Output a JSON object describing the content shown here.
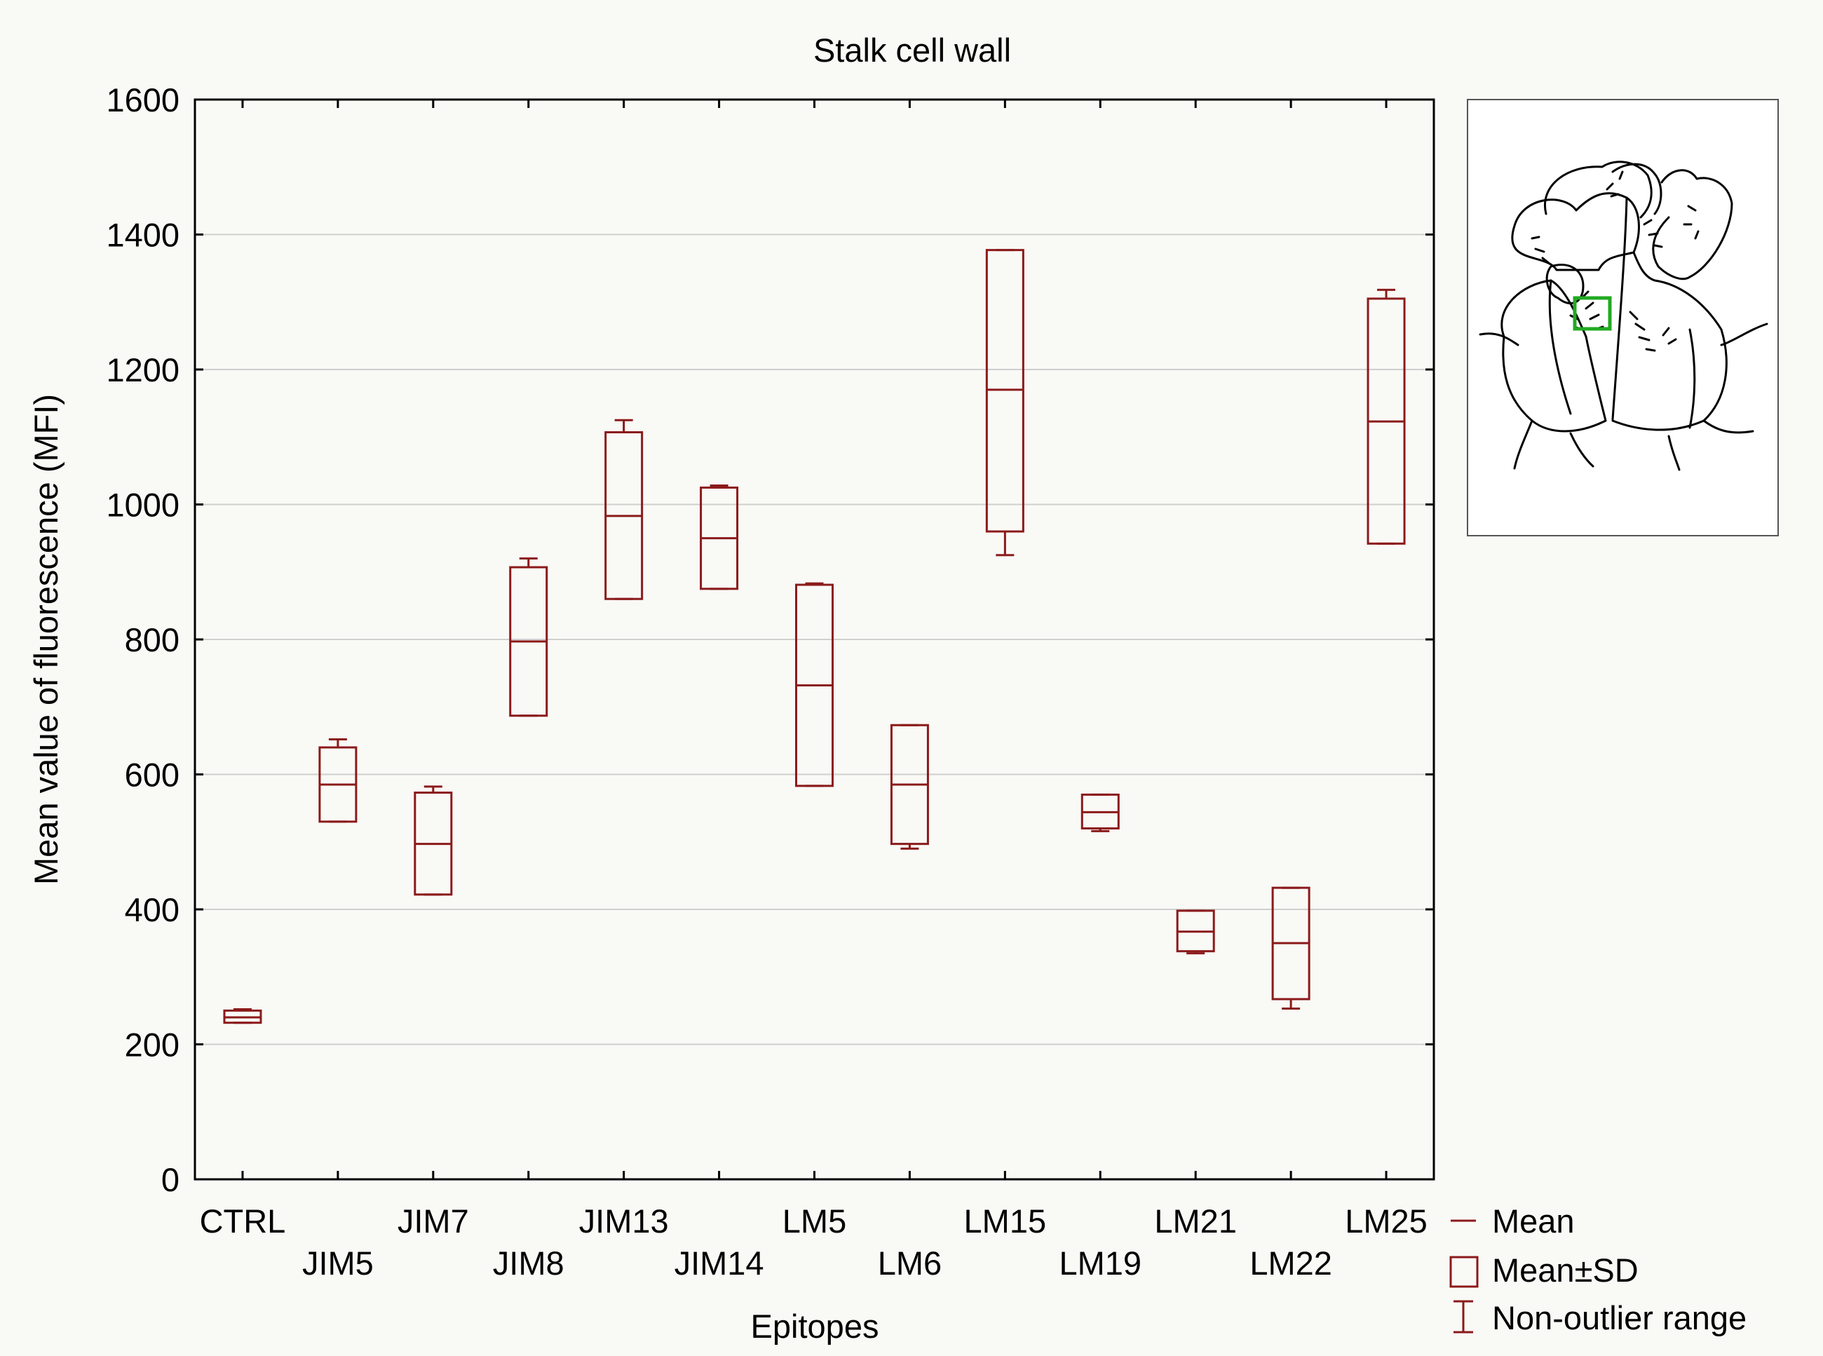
{
  "chart_data": {
    "type": "box",
    "title": "Stalk cell wall",
    "xlabel": "Epitopes",
    "ylabel": "Mean value of fluorescence (MFI)",
    "ylim": [
      0,
      1600
    ],
    "yticks": [
      0,
      200,
      400,
      600,
      800,
      1000,
      1200,
      1400,
      1600
    ],
    "grid": true,
    "categories": [
      "CTRL",
      "JIM5",
      "JIM7",
      "JIM8",
      "JIM13",
      "JIM14",
      "LM5",
      "LM6",
      "LM15",
      "LM19",
      "LM21",
      "LM22",
      "LM25"
    ],
    "series": [
      {
        "name": "Mean",
        "values": [
          240,
          585,
          497,
          797,
          983,
          950,
          732,
          585,
          1170,
          544,
          367,
          350,
          1123
        ]
      },
      {
        "name": "Mean±SD",
        "low": [
          232,
          530,
          422,
          687,
          860,
          875,
          583,
          497,
          960,
          520,
          338,
          267,
          942
        ],
        "high": [
          250,
          640,
          573,
          907,
          1107,
          1025,
          881,
          673,
          1377,
          570,
          398,
          432,
          1305
        ]
      },
      {
        "name": "Non-outlier range",
        "low": [
          232,
          530,
          422,
          687,
          860,
          875,
          583,
          490,
          925,
          516,
          335,
          253,
          942
        ],
        "high": [
          252,
          652,
          582,
          920,
          1125,
          1028,
          883,
          673,
          1377,
          570,
          398,
          432,
          1318
        ]
      }
    ],
    "legend_position": "bottom-right",
    "legend": [
      {
        "symbol": "line",
        "label": "Mean"
      },
      {
        "symbol": "box",
        "label": "Mean±SD"
      },
      {
        "symbol": "whisker",
        "label": "Non-outlier range"
      }
    ],
    "colors": {
      "series": "#8b1a1a",
      "inset_highlight": "#22aa22"
    }
  }
}
